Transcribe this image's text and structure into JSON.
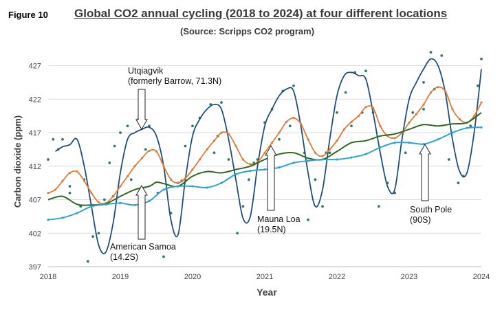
{
  "figure_label": "Figure 10",
  "chart_data": {
    "type": "line",
    "title": "Global CO2 annual cycling (2018 to 2024) at four different locations",
    "subtitle": "(Source: Scripps CO2 program)",
    "xlabel": "Year",
    "ylabel": "Carbon dioxide (ppm)",
    "xlim": [
      2018,
      2024
    ],
    "ylim": [
      397,
      429
    ],
    "x_ticks": [
      "2018",
      "2019",
      "2020",
      "2021",
      "2022",
      "2023",
      "2024"
    ],
    "y_ticks": [
      "397",
      "402",
      "407",
      "412",
      "417",
      "422",
      "427"
    ],
    "grid": "horizontal",
    "annotations": [
      {
        "line1": "Utqiagvik",
        "line2": "(formerly Barrow, 71.3N)"
      },
      {
        "line1": "American Samoa",
        "line2": "(14.2S)"
      },
      {
        "line1": "Mauna Loa",
        "line2": "(19.5N)"
      },
      {
        "line1": "South Pole",
        "line2": "(90S)"
      }
    ],
    "colors": {
      "utqiagvik": "#1f4e79",
      "mauna_loa": "#e07b39",
      "samoa": "#2d6a1e",
      "south_pole": "#2aa3d6",
      "points": "#2d7a6a"
    },
    "series": [
      {
        "key": "utqiagvik",
        "x": [
          2018.1,
          2018.2,
          2018.3,
          2018.4,
          2018.5,
          2018.6,
          2018.7,
          2018.8,
          2018.9,
          2019.0,
          2019.1,
          2019.2,
          2019.3,
          2019.4,
          2019.5,
          2019.6,
          2019.7,
          2019.8,
          2019.9,
          2020.0,
          2020.1,
          2020.2,
          2020.3,
          2020.4,
          2020.5,
          2020.6,
          2020.7,
          2020.8,
          2020.9,
          2021.0,
          2021.1,
          2021.2,
          2021.3,
          2021.4,
          2021.5,
          2021.6,
          2021.7,
          2021.8,
          2021.9,
          2022.0,
          2022.1,
          2022.2,
          2022.3,
          2022.4,
          2022.5,
          2022.6,
          2022.7,
          2022.8,
          2022.9,
          2023.0,
          2023.1,
          2023.2,
          2023.3,
          2023.4,
          2023.5,
          2023.6,
          2023.7,
          2023.8,
          2023.9,
          2024.0
        ],
        "values": [
          414.2,
          414.9,
          415.2,
          416.0,
          412.0,
          406.0,
          400.2,
          399.2,
          403.5,
          411.0,
          416.0,
          417.0,
          417.5,
          417.8,
          416.5,
          412.0,
          404.0,
          401.8,
          410.0,
          416.5,
          419.0,
          420.5,
          421.2,
          420.5,
          416.0,
          410.0,
          404.2,
          404.5,
          412.0,
          418.0,
          420.5,
          422.5,
          423.5,
          423.2,
          418.0,
          411.0,
          406.0,
          408.5,
          416.0,
          422.5,
          425.5,
          426.0,
          425.5,
          425.0,
          420.0,
          414.0,
          409.0,
          408.5,
          416.0,
          422.0,
          424.5,
          426.5,
          428.0,
          427.0,
          423.0,
          416.0,
          411.2,
          411.0,
          417.0,
          426.5
        ]
      },
      {
        "key": "mauna_loa",
        "x": [
          2018.0,
          2018.1,
          2018.2,
          2018.3,
          2018.4,
          2018.5,
          2018.6,
          2018.7,
          2018.8,
          2018.9,
          2019.0,
          2019.1,
          2019.2,
          2019.3,
          2019.4,
          2019.5,
          2019.6,
          2019.7,
          2019.8,
          2019.9,
          2020.0,
          2020.1,
          2020.2,
          2020.3,
          2020.4,
          2020.5,
          2020.6,
          2020.7,
          2020.8,
          2020.9,
          2021.0,
          2021.1,
          2021.2,
          2021.3,
          2021.4,
          2021.5,
          2021.6,
          2021.7,
          2021.8,
          2021.9,
          2022.0,
          2022.1,
          2022.2,
          2022.3,
          2022.4,
          2022.5,
          2022.6,
          2022.7,
          2022.8,
          2022.9,
          2023.0,
          2023.1,
          2023.2,
          2023.3,
          2023.4,
          2023.5,
          2023.6,
          2023.7,
          2023.8,
          2023.9,
          2024.0
        ],
        "values": [
          408.0,
          408.5,
          409.8,
          411.0,
          411.2,
          409.8,
          408.0,
          406.6,
          406.5,
          407.5,
          409.0,
          410.5,
          412.0,
          413.2,
          414.3,
          414.2,
          412.0,
          410.0,
          409.5,
          410.2,
          411.5,
          413.0,
          414.5,
          415.8,
          417.0,
          416.8,
          415.0,
          413.0,
          412.3,
          412.6,
          414.0,
          415.5,
          417.0,
          418.6,
          419.2,
          418.3,
          416.0,
          414.0,
          413.5,
          414.5,
          415.8,
          417.5,
          418.6,
          419.5,
          420.8,
          420.7,
          418.0,
          416.5,
          416.2,
          417.0,
          418.5,
          419.8,
          421.2,
          423.0,
          423.8,
          423.2,
          420.5,
          419.0,
          418.5,
          419.5,
          421.5
        ]
      },
      {
        "key": "samoa",
        "x": [
          2018.0,
          2018.2,
          2018.4,
          2018.6,
          2018.8,
          2019.0,
          2019.2,
          2019.4,
          2019.5,
          2019.6,
          2019.8,
          2020.0,
          2020.2,
          2020.4,
          2020.6,
          2020.8,
          2021.0,
          2021.2,
          2021.4,
          2021.6,
          2021.8,
          2022.0,
          2022.2,
          2022.4,
          2022.6,
          2022.8,
          2023.0,
          2023.2,
          2023.4,
          2023.6,
          2023.8,
          2024.0
        ],
        "values": [
          407.0,
          407.5,
          406.3,
          406.2,
          406.4,
          407.5,
          408.5,
          409.0,
          409.6,
          409.4,
          409.0,
          410.5,
          411.2,
          411.0,
          411.5,
          412.0,
          413.0,
          413.8,
          414.0,
          413.2,
          413.0,
          414.2,
          415.5,
          415.8,
          416.5,
          416.8,
          417.5,
          418.2,
          418.0,
          418.3,
          418.5,
          420.0
        ]
      },
      {
        "key": "south_pole",
        "x": [
          2018.0,
          2018.2,
          2018.4,
          2018.6,
          2018.8,
          2019.0,
          2019.2,
          2019.4,
          2019.6,
          2019.8,
          2020.0,
          2020.2,
          2020.4,
          2020.6,
          2020.8,
          2021.0,
          2021.2,
          2021.4,
          2021.6,
          2021.8,
          2022.0,
          2022.2,
          2022.4,
          2022.6,
          2022.8,
          2023.0,
          2023.2,
          2023.4,
          2023.6,
          2023.8,
          2024.0
        ],
        "values": [
          404.0,
          404.3,
          405.0,
          406.0,
          406.3,
          406.5,
          406.2,
          406.8,
          408.5,
          409.0,
          409.0,
          408.8,
          409.5,
          410.8,
          411.3,
          411.5,
          411.8,
          412.5,
          412.8,
          413.0,
          413.0,
          413.3,
          413.8,
          414.8,
          415.5,
          415.5,
          415.3,
          416.0,
          417.0,
          417.7,
          417.8
        ]
      }
    ],
    "scatter": {
      "x": [
        2018.0,
        2018.07,
        2018.14,
        2018.2,
        2018.3,
        2018.45,
        2018.55,
        2018.62,
        2018.7,
        2018.78,
        2018.85,
        2018.92,
        2019.0,
        2019.1,
        2019.25,
        2019.4,
        2019.52,
        2019.6,
        2019.7,
        2019.8,
        2019.9,
        2020.0,
        2020.1,
        2020.25,
        2020.4,
        2020.5,
        2020.62,
        2020.7,
        2020.78,
        2020.9,
        2021.0,
        2021.1,
        2021.25,
        2021.4,
        2021.55,
        2021.6,
        2021.7,
        2021.8,
        2021.9,
        2022.0,
        2022.12,
        2022.25,
        2022.4,
        2022.5,
        2022.58,
        2022.7,
        2022.8,
        2022.95,
        2023.05,
        2023.2,
        2023.3,
        2023.45,
        2023.55,
        2023.68,
        2023.75,
        2023.85,
        2023.95,
        2024.0,
        2018.5,
        2019.35,
        2020.35,
        2021.35,
        2022.35,
        2023.35,
        2018.3,
        2019.15,
        2020.3,
        2021.2,
        2022.2,
        2023.2,
        2018.9,
        2019.85,
        2020.85,
        2021.85
      ],
      "values": [
        413.0,
        416.0,
        414.5,
        416.0,
        409.0,
        406.0,
        397.8,
        401.5,
        402.0,
        407.0,
        412.5,
        415.0,
        417.0,
        418.0,
        419.0,
        418.0,
        408.0,
        398.5,
        405.0,
        409.5,
        415.0,
        418.0,
        419.2,
        421.2,
        421.5,
        413.0,
        402.0,
        406.0,
        410.0,
        413.0,
        418.5,
        420.5,
        423.2,
        424.0,
        414.0,
        404.0,
        410.0,
        406.0,
        414.0,
        420.0,
        423.0,
        426.0,
        426.2,
        420.0,
        406.0,
        409.5,
        408.0,
        414.0,
        420.0,
        424.5,
        429.0,
        428.5,
        413.0,
        409.5,
        410.5,
        418.0,
        424.0,
        428.0,
        410.0,
        414.5,
        416.5,
        418.0,
        420.0,
        423.5,
        408.0,
        410.0,
        414.0,
        416.0,
        418.0,
        420.5,
        407.5,
        409.8,
        412.5,
        414.0
      ]
    }
  }
}
